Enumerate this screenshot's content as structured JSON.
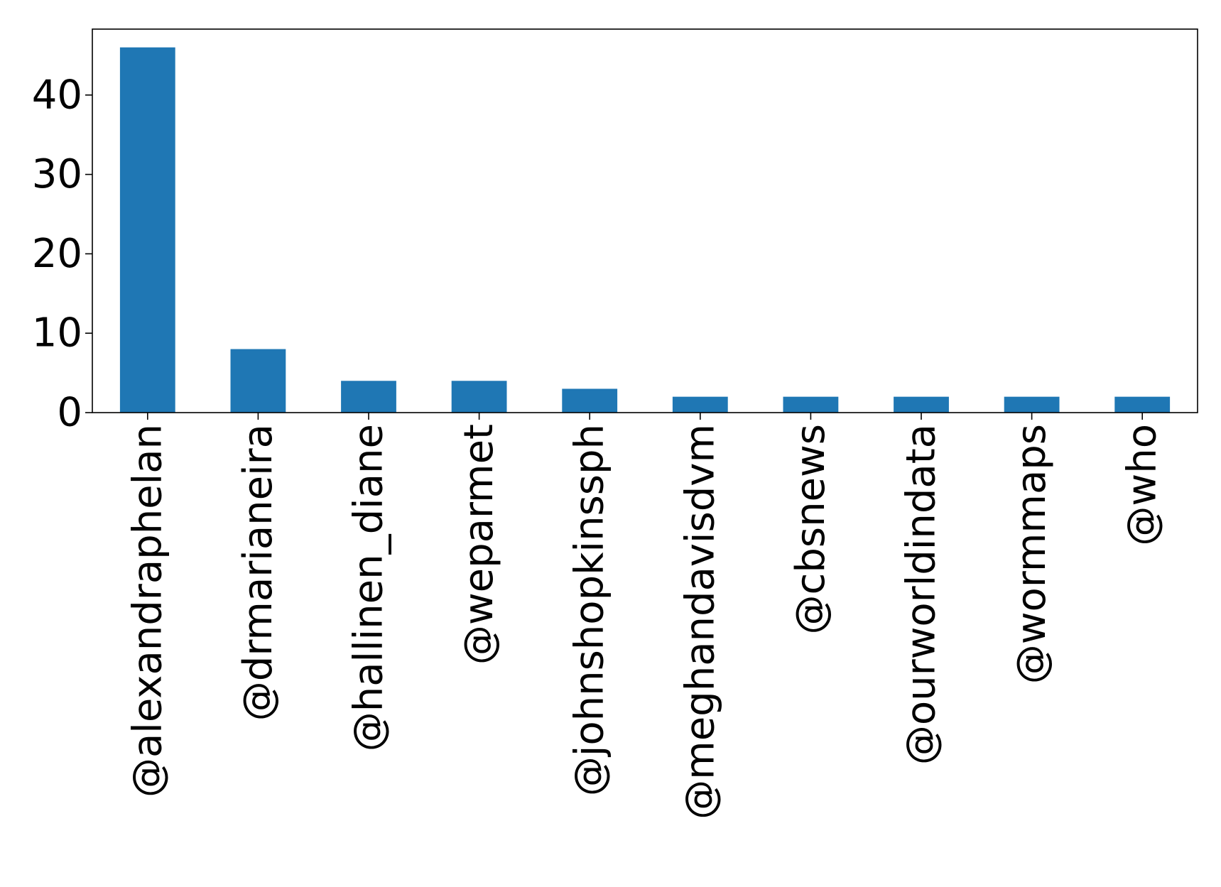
{
  "chart_data": {
    "type": "bar",
    "title": "",
    "xlabel": "",
    "ylabel": "",
    "categories": [
      "@alexandraphelan",
      "@drmarianeira",
      "@hallinen_diane",
      "@weparmet",
      "@johnshopkinssph",
      "@meghandavisdvm",
      "@cbsnews",
      "@ourworldindata",
      "@wormmaps",
      "@who"
    ],
    "values": [
      46,
      8,
      4,
      4,
      3,
      2,
      2,
      2,
      2,
      2
    ],
    "ylim": [
      0,
      48.3
    ],
    "yticks": [
      0,
      10,
      20,
      30,
      40
    ],
    "ytick_labels": [
      "0",
      "10",
      "20",
      "30",
      "40"
    ],
    "bar_color": "#1f77b4",
    "grid": false,
    "legend": "none"
  }
}
